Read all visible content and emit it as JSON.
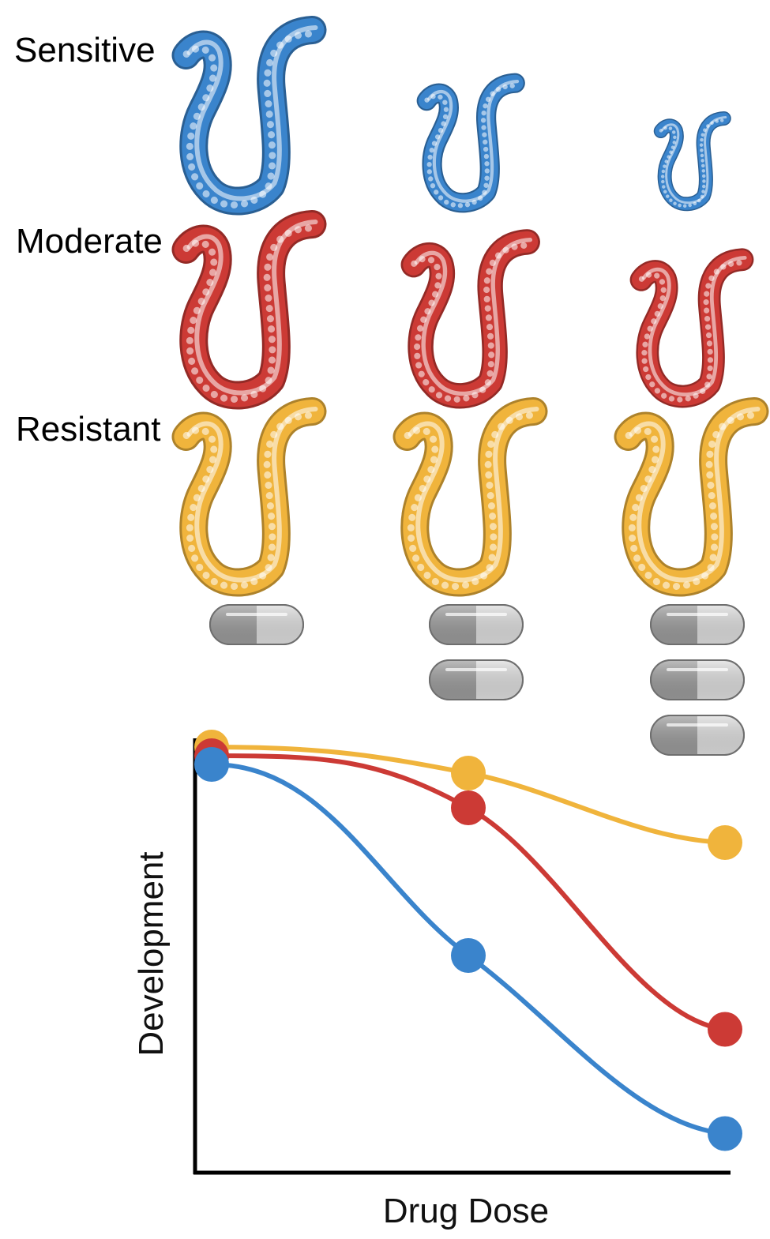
{
  "labels": {
    "sensitive": "Sensitive",
    "moderate": "Moderate",
    "resistant": "Resistant"
  },
  "colors": {
    "sensitive": "#3a84cc",
    "moderate": "#cc3a35",
    "resistant": "#f0b43c",
    "pill_dark": "#9a9a9a",
    "pill_light": "#dcdcdc",
    "axis": "#000000"
  },
  "icons": {
    "worm": "nematode-icon",
    "pill": "capsule-icon"
  },
  "doses": [
    {
      "pills": 1
    },
    {
      "pills": 2
    },
    {
      "pills": 3
    }
  ],
  "worm_relative_size": {
    "sensitive": [
      1.0,
      0.7,
      0.5
    ],
    "moderate": [
      1.0,
      0.9,
      0.8
    ],
    "resistant": [
      1.0,
      1.0,
      1.0
    ]
  },
  "chart_data": {
    "type": "line",
    "xlabel": "Drug Dose",
    "ylabel": "Development",
    "x": [
      1,
      2,
      3
    ],
    "xlim": [
      1,
      3
    ],
    "ylim": [
      0,
      1
    ],
    "grid": false,
    "legend": "none",
    "series": [
      {
        "key": "resistant",
        "color": "#f0b43c",
        "values": [
          0.98,
          0.92,
          0.76
        ]
      },
      {
        "key": "moderate",
        "color": "#cc3a35",
        "values": [
          0.96,
          0.84,
          0.33
        ]
      },
      {
        "key": "sensitive",
        "color": "#3a84cc",
        "values": [
          0.94,
          0.5,
          0.09
        ]
      }
    ]
  }
}
